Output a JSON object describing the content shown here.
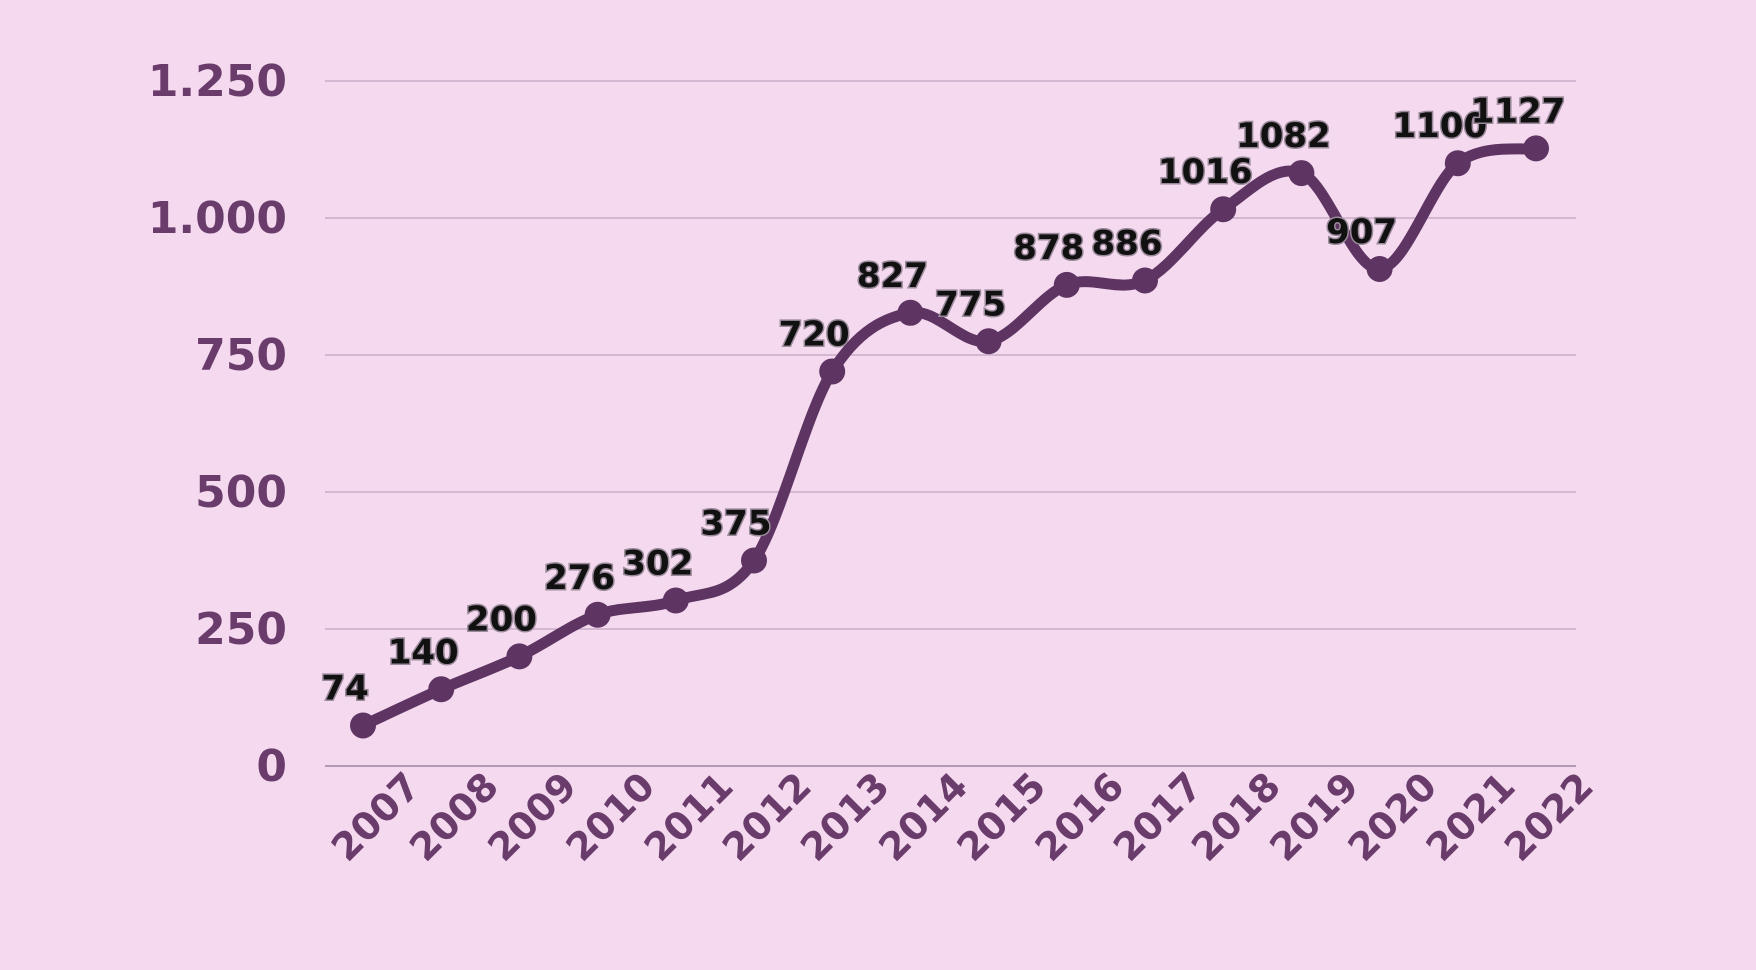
{
  "chart_data": {
    "type": "line",
    "title": "",
    "xlabel": "",
    "ylabel": "",
    "x": [
      "2007",
      "2008",
      "2009",
      "2010",
      "2011",
      "2012",
      "2013",
      "2014",
      "2015",
      "2016",
      "2017",
      "2018",
      "2019",
      "2020",
      "2021",
      "2022"
    ],
    "series": [
      {
        "values": [
          74,
          140,
          200,
          276,
          302,
          375,
          720,
          827,
          775,
          878,
          886,
          1016,
          1082,
          907,
          1100,
          1127
        ],
        "color": "#5e3463",
        "smooth": true,
        "markers": true
      }
    ],
    "data_labels": [
      "74",
      "140",
      "200",
      "276",
      "302",
      "375",
      "720",
      "827",
      "775",
      "878",
      "886",
      "1016",
      "1082",
      "907",
      "1100",
      "1127"
    ],
    "yticks": [
      0,
      250,
      500,
      750,
      1000,
      1250
    ],
    "ytick_labels": [
      "0",
      "250",
      "500",
      "750",
      "1.000",
      "1.250"
    ],
    "ylim": [
      0,
      1250
    ],
    "grid": true,
    "legend": "none",
    "colors": {
      "background": "#f4d9ef",
      "line": "#5e3463",
      "tick_text": "#6a3c6c",
      "data_label": "#111111",
      "grid": "#c9aec8"
    }
  }
}
